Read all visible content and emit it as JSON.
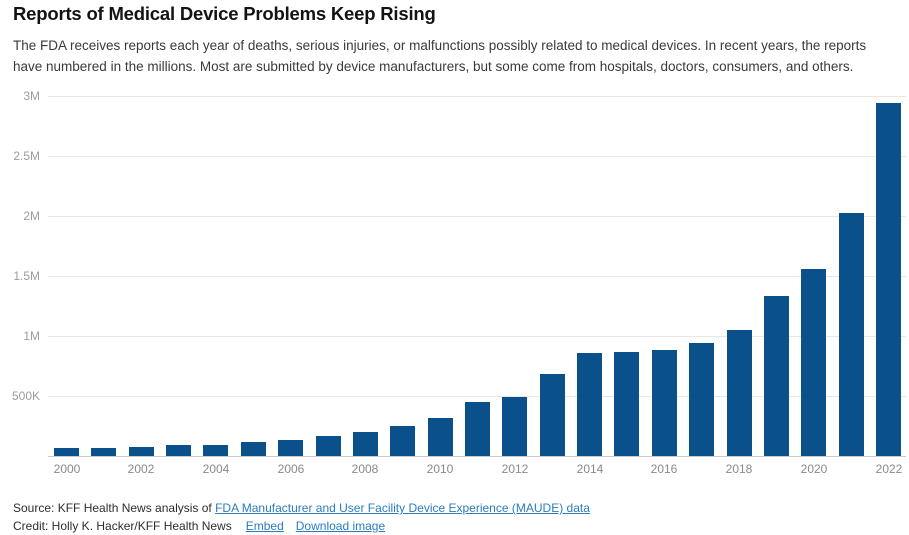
{
  "header": {
    "title": "Reports of Medical Device Problems Keep Rising",
    "description": "The FDA receives reports each year of deaths, serious injuries, or malfunctions possibly related to medical devices. In recent years, the reports have numbered in the millions. Most are submitted by device manufacturers, but some come from hospitals, doctors, consumers, and others."
  },
  "chart_data": {
    "type": "bar",
    "title": "Reports of Medical Device Problems Keep Rising",
    "categories": [
      2000,
      2001,
      2002,
      2003,
      2004,
      2005,
      2006,
      2007,
      2008,
      2009,
      2010,
      2011,
      2012,
      2013,
      2014,
      2015,
      2016,
      2017,
      2018,
      2019,
      2020,
      2021,
      2022
    ],
    "values": [
      65000,
      70000,
      78000,
      89000,
      95000,
      120000,
      137000,
      167000,
      200000,
      247000,
      314000,
      450000,
      490000,
      680000,
      856000,
      864000,
      883000,
      940000,
      1053000,
      1330000,
      1560000,
      2023000,
      2943000
    ],
    "x_tick_years": [
      "2000",
      "2002",
      "2004",
      "2006",
      "2008",
      "2010",
      "2012",
      "2014",
      "2016",
      "2018",
      "2020",
      "2022"
    ],
    "y_ticks": [
      {
        "value": 500000,
        "label": "500K"
      },
      {
        "value": 1000000,
        "label": "1M"
      },
      {
        "value": 1500000,
        "label": "1.5M"
      },
      {
        "value": 2000000,
        "label": "2M"
      },
      {
        "value": 2500000,
        "label": "2.5M"
      },
      {
        "value": 3000000,
        "label": "3M"
      }
    ],
    "ylim": [
      0,
      3000000
    ],
    "xlabel": "",
    "ylabel": "",
    "grid": true,
    "legend": "none",
    "bar_color": "#0a518c",
    "gridline_color": "#e7e7e7",
    "axis_line_color": "#c9c9c9"
  },
  "footer": {
    "source_prefix": "Source: KFF Health News analysis of ",
    "source_link_text": "FDA Manufacturer and User Facility Device Experience (MAUDE) data",
    "credit_text": "Credit: Holly K. Hacker/KFF Health News",
    "embed_label": "Embed",
    "download_label": "Download image",
    "link_color": "#2b7cbf"
  }
}
